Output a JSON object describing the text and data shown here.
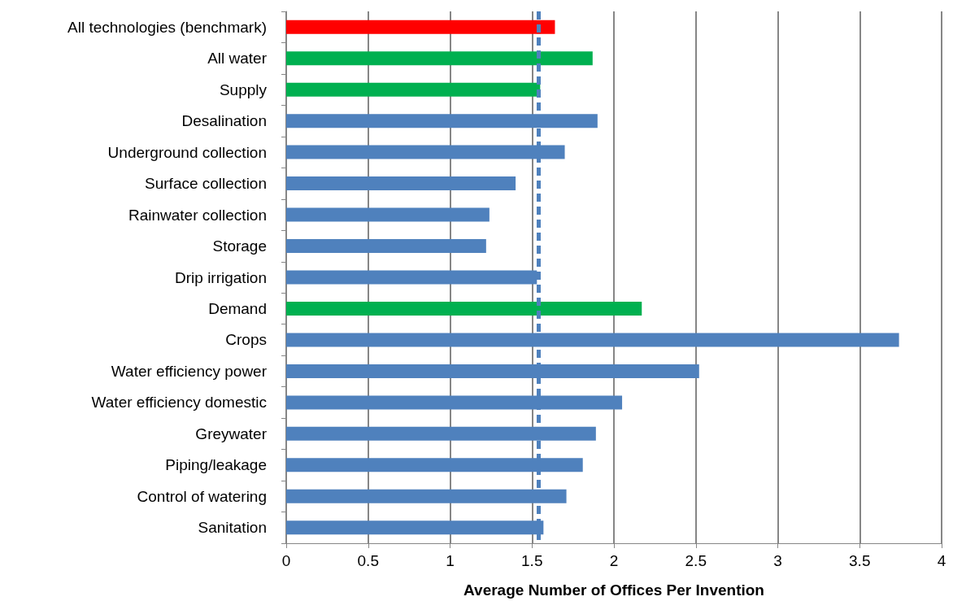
{
  "chart_data": {
    "type": "bar",
    "orientation": "horizontal",
    "xlabel": "Average Number of Offices Per Invention",
    "categories": [
      "All technologies (benchmark)",
      "All water",
      "Supply",
      "Desalination",
      "Underground collection",
      "Surface collection",
      "Rainwater collection",
      "Storage",
      "Drip irrigation",
      "Demand",
      "Crops",
      "Water efficiency power",
      "Water efficiency domestic",
      "Greywater",
      "Piping/leakage",
      "Control of watering",
      "Sanitation"
    ],
    "values": [
      1.64,
      1.87,
      1.55,
      1.9,
      1.7,
      1.4,
      1.24,
      1.22,
      1.53,
      2.17,
      3.74,
      2.52,
      2.05,
      1.89,
      1.81,
      1.71,
      1.57
    ],
    "colors": [
      "#ff0000",
      "#00b050",
      "#00b050",
      "#4f81bd",
      "#4f81bd",
      "#4f81bd",
      "#4f81bd",
      "#4f81bd",
      "#4f81bd",
      "#00b050",
      "#4f81bd",
      "#4f81bd",
      "#4f81bd",
      "#4f81bd",
      "#4f81bd",
      "#4f81bd",
      "#4f81bd"
    ],
    "xlim": [
      0,
      4
    ],
    "xticks": [
      0,
      0.5,
      1,
      1.5,
      2,
      2.5,
      3,
      3.5,
      4
    ],
    "grid": "x",
    "ref_lines": [
      {
        "axis": "x",
        "value": 1.54,
        "color": "#4f81bd",
        "line_style": "dashed"
      }
    ]
  }
}
